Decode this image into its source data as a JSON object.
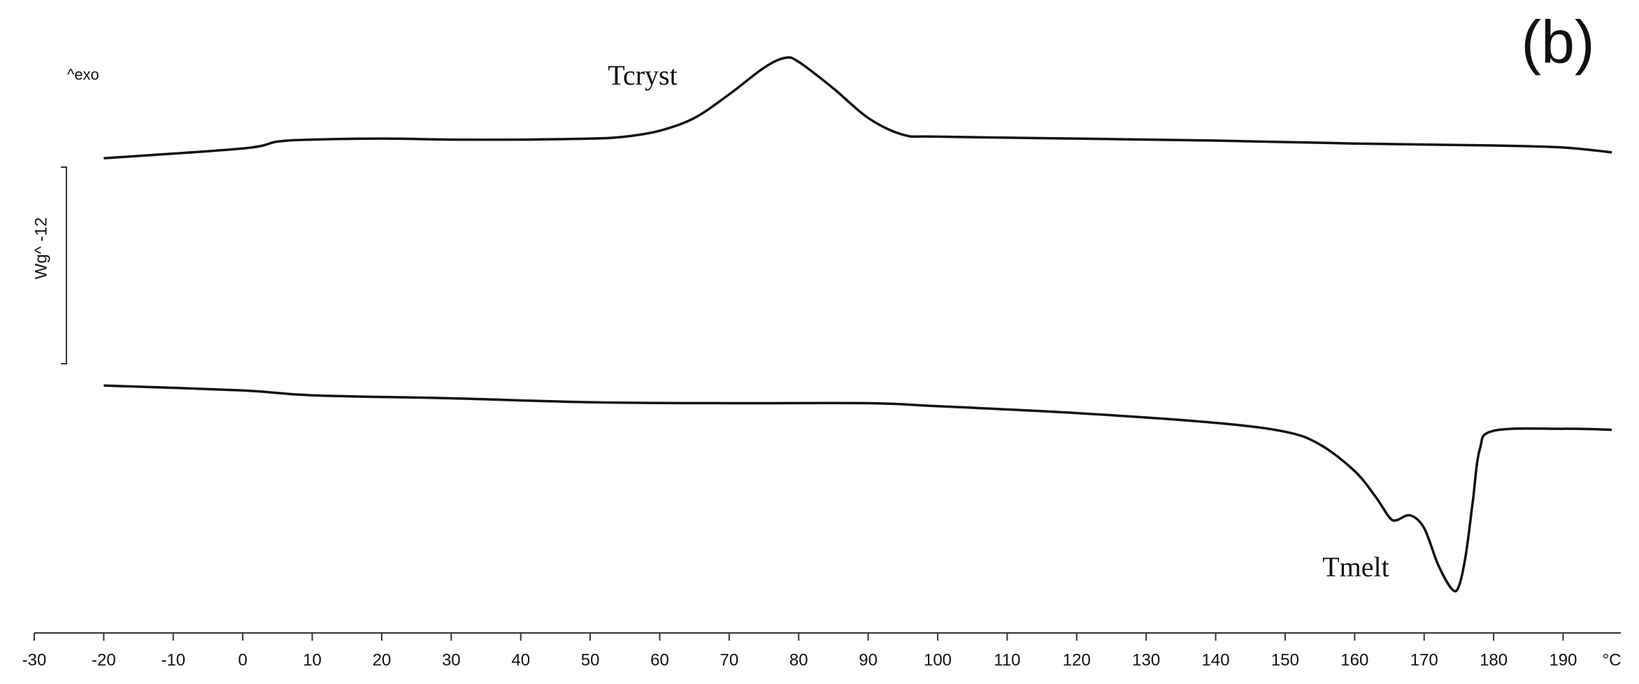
{
  "chart_data": {
    "type": "line",
    "panel_label": "(b)",
    "direction_label": "^exo",
    "scale_label": "Wg^ -12",
    "xlabel": "°C",
    "annotations": [
      "Tcryst",
      "Tmelt"
    ],
    "xlim": [
      -30,
      198
    ],
    "xticks": [
      -30,
      -20,
      -10,
      0,
      10,
      20,
      30,
      40,
      50,
      60,
      70,
      80,
      90,
      100,
      110,
      120,
      130,
      140,
      150,
      160,
      170,
      180,
      190
    ],
    "ylim": [
      -2.7,
      3.5
    ],
    "series": [
      {
        "color": "#111111",
        "x": [
          -20,
          0,
          5,
          10,
          20,
          30,
          40,
          50,
          55,
          60,
          65,
          70,
          75,
          78,
          80,
          85,
          90,
          95,
          100,
          120,
          140,
          160,
          180,
          190,
          197
        ],
        "values": [
          2.09,
          2.19,
          2.26,
          2.28,
          2.29,
          2.28,
          2.28,
          2.29,
          2.31,
          2.37,
          2.5,
          2.74,
          3.01,
          3.11,
          3.07,
          2.8,
          2.5,
          2.33,
          2.31,
          2.29,
          2.27,
          2.24,
          2.22,
          2.2,
          2.15
        ]
      },
      {
        "color": "#111111",
        "x": [
          -20,
          0,
          10,
          30,
          50,
          70,
          90,
          100,
          120,
          140,
          150,
          155,
          160,
          163,
          165,
          166,
          168,
          170,
          172,
          174,
          175,
          176,
          177,
          178,
          180,
          190,
          197
        ],
        "values": [
          -0.22,
          -0.27,
          -0.32,
          -0.35,
          -0.39,
          -0.4,
          -0.4,
          -0.43,
          -0.5,
          -0.6,
          -0.69,
          -0.82,
          -1.09,
          -1.35,
          -1.56,
          -1.59,
          -1.54,
          -1.67,
          -2.04,
          -2.29,
          -2.26,
          -1.94,
          -1.4,
          -0.87,
          -0.68,
          -0.66,
          -0.67
        ]
      }
    ]
  }
}
